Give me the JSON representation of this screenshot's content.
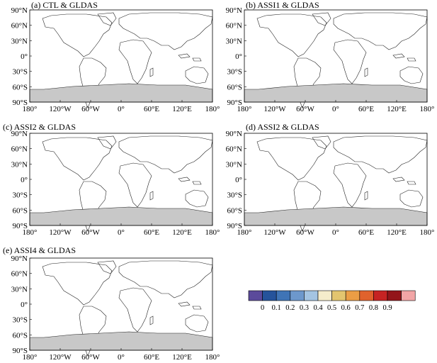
{
  "panels": [
    {
      "title": "(a) CTL & GLDAS"
    },
    {
      "title": "(b) ASSI1 & GLDAS"
    },
    {
      "title": "(c) ASSI2 & GLDAS"
    },
    {
      "title": "(d) ASSI2 & GLDAS"
    },
    {
      "title": "(e) ASSI4 & GLDAS"
    }
  ],
  "lat_ticks": [
    "90°N",
    "60°N",
    "30°N",
    "0°",
    "30°S",
    "60°S",
    "90°S"
  ],
  "lon_ticks": [
    "180°",
    "120°W",
    "60°W",
    "0°",
    "60°E",
    "120°E",
    "180°"
  ],
  "colorbar": {
    "labels": [
      "0",
      "0.1",
      "0.2",
      "0.3",
      "0.4",
      "0.5",
      "0.6",
      "0.7",
      "0.8",
      "0.9"
    ],
    "colors": [
      "#5b4a9b",
      "#25539b",
      "#3f74b6",
      "#6d98cc",
      "#a4c4e2",
      "#f5eccb",
      "#e3c56f",
      "#eb9d45",
      "#e0622d",
      "#c62323",
      "#93151a",
      "#f2a5a6"
    ]
  },
  "map_colors": {
    "high": "#d8442a",
    "mid": "#eb9d45",
    "low": "#6d98cc",
    "antarctica": "#c8c8c8"
  }
}
